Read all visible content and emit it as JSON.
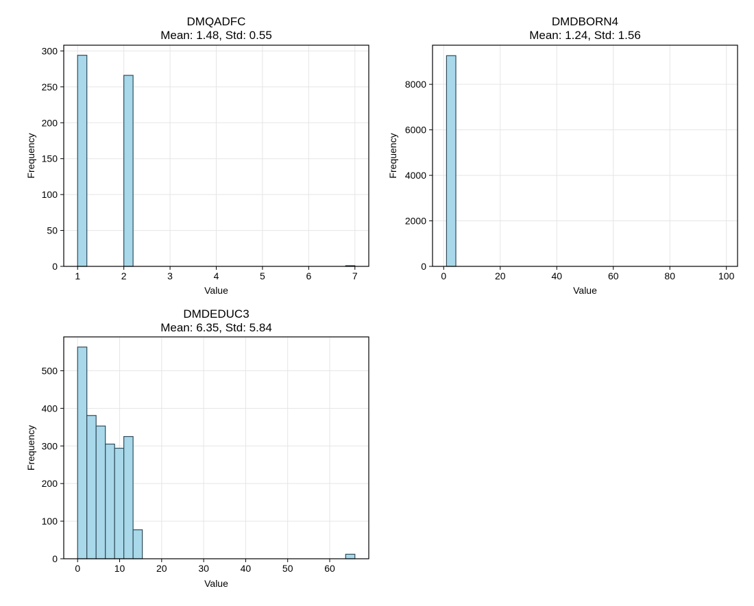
{
  "colors": {
    "bar_fill": "#a8d8ea",
    "bar_edge": "#2f4a57",
    "grid": "#e5e5e5",
    "axis": "#000000"
  },
  "chart_data": [
    {
      "type": "bar",
      "id": "DMQADFC",
      "title": "DMQADFC",
      "subtitle": "Mean: 1.48, Std: 0.55",
      "xlabel": "Value",
      "ylabel": "Frequency",
      "xlim": [
        0.7,
        7.3
      ],
      "ylim": [
        0,
        308
      ],
      "xticks": [
        1,
        2,
        3,
        4,
        5,
        6,
        7
      ],
      "yticks": [
        0,
        50,
        100,
        150,
        200,
        250,
        300
      ],
      "grid": true,
      "bin_width": 0.2,
      "bins": [
        {
          "start": 1.0,
          "value": 294
        },
        {
          "start": 2.0,
          "value": 266
        },
        {
          "start": 6.8,
          "value": 1
        }
      ]
    },
    {
      "type": "bar",
      "id": "DMDBORN4",
      "title": "DMDBORN4",
      "subtitle": "Mean: 1.24, Std: 1.56",
      "xlabel": "Value",
      "ylabel": "Frequency",
      "xlim": [
        -3.95,
        103.95
      ],
      "ylim": [
        0,
        9720
      ],
      "xticks": [
        0,
        20,
        40,
        60,
        80,
        100
      ],
      "yticks": [
        0,
        2000,
        4000,
        6000,
        8000
      ],
      "grid": true,
      "bin_width": 3.3,
      "bins": [
        {
          "start": 1.0,
          "value": 9260
        }
      ]
    },
    {
      "type": "bar",
      "id": "DMDEDUC3",
      "title": "DMDEDUC3",
      "subtitle": "Mean: 6.35, Std: 5.84",
      "xlabel": "Value",
      "ylabel": "Frequency",
      "xlim": [
        -3.3,
        69.3
      ],
      "ylim": [
        0,
        590
      ],
      "xticks": [
        0,
        10,
        20,
        30,
        40,
        50,
        60
      ],
      "yticks": [
        0,
        100,
        200,
        300,
        400,
        500
      ],
      "grid": true,
      "bin_width": 2.2,
      "bins": [
        {
          "start": 0.0,
          "value": 563
        },
        {
          "start": 2.2,
          "value": 381
        },
        {
          "start": 4.4,
          "value": 353
        },
        {
          "start": 6.6,
          "value": 305
        },
        {
          "start": 8.8,
          "value": 294
        },
        {
          "start": 11.0,
          "value": 325
        },
        {
          "start": 13.2,
          "value": 77
        },
        {
          "start": 63.8,
          "value": 12
        }
      ]
    }
  ]
}
